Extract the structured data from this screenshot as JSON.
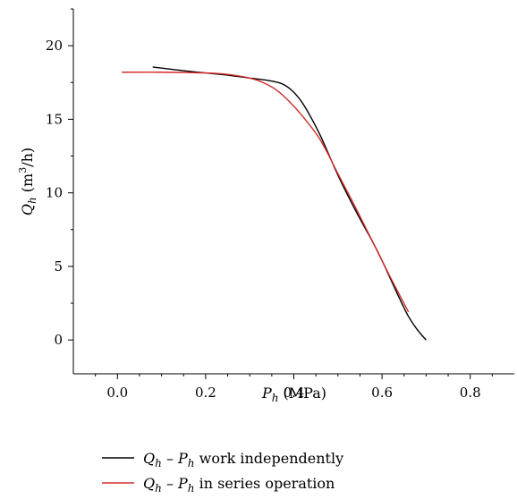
{
  "chart_data": {
    "type": "line",
    "title": "",
    "xlabel": {
      "symbol": "P",
      "sub": "h",
      "unit": " (MPa)"
    },
    "ylabel": {
      "symbol": "Q",
      "sub": "h",
      "unit_pre": " (m",
      "unit_sup": "3",
      "unit_post": "/h)"
    },
    "xlim": [
      -0.1,
      0.9
    ],
    "ylim": [
      -2.3,
      22.5
    ],
    "x_ticks": [
      "0.0",
      "0.2",
      "0.4",
      "0.6",
      "0.8"
    ],
    "y_ticks": [
      "0",
      "5",
      "10",
      "15",
      "20"
    ],
    "grid": false,
    "legend_position": "bottom-left",
    "series": [
      {
        "name": "work independently",
        "color": "#000000",
        "x": [
          0.08,
          0.15,
          0.2,
          0.25,
          0.3,
          0.34,
          0.37,
          0.39,
          0.41,
          0.43,
          0.46,
          0.5,
          0.54,
          0.58,
          0.6,
          0.62,
          0.64,
          0.66,
          0.68,
          0.7
        ],
        "y": [
          18.55,
          18.3,
          18.15,
          18.0,
          17.8,
          17.65,
          17.45,
          17.1,
          16.5,
          15.6,
          13.9,
          11.2,
          8.8,
          6.6,
          5.4,
          4.1,
          2.8,
          1.6,
          0.7,
          0.0
        ]
      },
      {
        "name": "in series operation",
        "color": "#d42a2a",
        "x": [
          0.01,
          0.1,
          0.2,
          0.25,
          0.3,
          0.33,
          0.36,
          0.39,
          0.42,
          0.46,
          0.5,
          0.54,
          0.58,
          0.62,
          0.66
        ],
        "y": [
          18.2,
          18.2,
          18.15,
          18.05,
          17.8,
          17.5,
          17.0,
          16.2,
          15.2,
          13.6,
          11.3,
          9.0,
          6.6,
          4.2,
          1.9
        ]
      }
    ]
  },
  "legend": [
    {
      "sym1": "Q",
      "sub1": "h",
      "dash": " – ",
      "sym2": "P",
      "sub2": "h",
      "text": " work independently"
    },
    {
      "sym1": "Q",
      "sub1": "h",
      "dash": " – ",
      "sym2": "P",
      "sub2": "h",
      "text": " in series operation"
    }
  ]
}
